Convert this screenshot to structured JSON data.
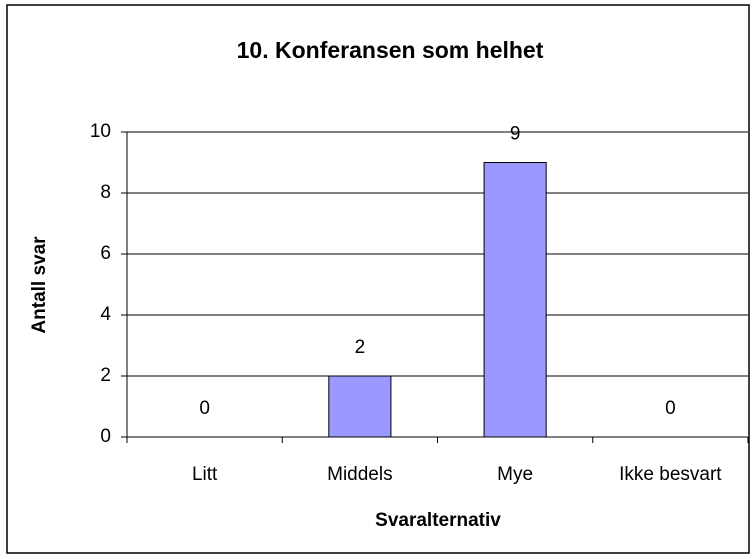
{
  "chart_data": {
    "type": "bar",
    "title": "10. Konferansen som helhet",
    "x_label": "Svaralternativ",
    "y_label": "Antall svar",
    "categories": [
      "Litt",
      "Middels",
      "Mye",
      "Ikke besvart"
    ],
    "values": [
      0,
      2,
      9,
      0
    ],
    "color": "#9999ff",
    "ylim": [
      0,
      10
    ],
    "yticks": [
      0,
      2,
      4,
      6,
      8,
      10
    ],
    "grid": true
  }
}
